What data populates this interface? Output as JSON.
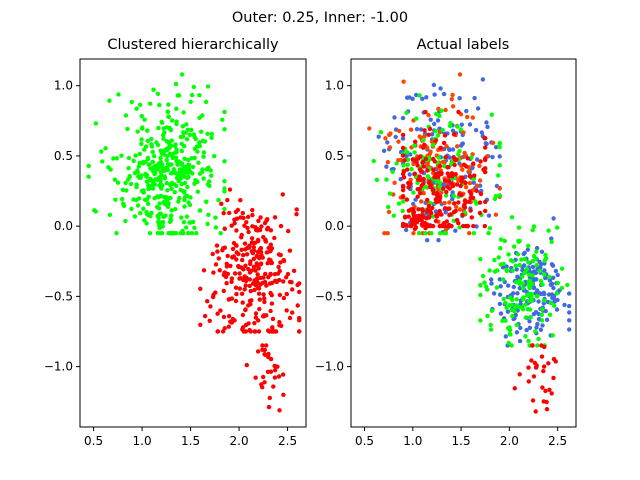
{
  "figure": {
    "suptitle": "Outer: 0.25, Inner: -1.00"
  },
  "colors": {
    "green": "#00ff00",
    "red": "#ff0000",
    "blue": "#4169e1",
    "orange": "#ff4500"
  },
  "chart_data": [
    {
      "type": "scatter",
      "title": "Clustered hierarchically",
      "xlim": [
        0.36,
        2.69
      ],
      "ylim": [
        -1.43,
        1.19
      ],
      "xticks": [
        0.5,
        1.0,
        1.5,
        2.0,
        2.5
      ],
      "xtick_labels": [
        "0.5",
        "1.0",
        "1.5",
        "2.0",
        "2.5"
      ],
      "yticks": [
        1.0,
        0.5,
        0.0,
        -0.5,
        -1.0
      ],
      "ytick_labels": [
        "1.0",
        "0.5",
        "0.0",
        "−0.5",
        "−1.0"
      ],
      "grid": false,
      "clusters": [
        {
          "color": "#00ff00",
          "count": 430,
          "cx": 1.25,
          "cy": 0.38,
          "sx": 0.28,
          "sy": 0.25,
          "xr": [
            0.45,
            1.85
          ],
          "yr": [
            -0.05,
            1.08
          ]
        },
        {
          "color": "#ff0000",
          "count": 300,
          "cx": 2.15,
          "cy": -0.35,
          "sx": 0.22,
          "sy": 0.25,
          "xr": [
            1.6,
            2.62
          ],
          "yr": [
            -0.75,
            0.35
          ]
        },
        {
          "color": "#ff0000",
          "count": 30,
          "cx": 2.3,
          "cy": -1.05,
          "sx": 0.1,
          "sy": 0.12,
          "xr": [
            2.05,
            2.58
          ],
          "yr": [
            -1.32,
            -0.85
          ]
        }
      ]
    },
    {
      "type": "scatter",
      "title": "Actual labels",
      "xlim": [
        0.36,
        2.69
      ],
      "ylim": [
        -1.43,
        1.19
      ],
      "xticks": [
        0.5,
        1.0,
        1.5,
        2.0,
        2.5
      ],
      "xtick_labels": [
        "0.5",
        "1.0",
        "1.5",
        "2.0",
        "2.5"
      ],
      "yticks": [
        1.0,
        0.5,
        0.0,
        -0.5,
        -1.0
      ],
      "ytick_labels": [
        "1.0",
        "0.5",
        "0.0",
        "−0.5",
        "−1.0"
      ],
      "grid": false,
      "clusters": [
        {
          "color": "#4169e1",
          "count": 160,
          "cx": 1.3,
          "cy": 0.45,
          "sx": 0.3,
          "sy": 0.25,
          "xr": [
            0.5,
            1.9
          ],
          "yr": [
            -0.1,
            1.05
          ]
        },
        {
          "color": "#ff4500",
          "count": 150,
          "cx": 1.25,
          "cy": 0.4,
          "sx": 0.28,
          "sy": 0.25,
          "xr": [
            0.55,
            1.9
          ],
          "yr": [
            -0.05,
            1.08
          ]
        },
        {
          "color": "#00ff00",
          "count": 120,
          "cx": 1.2,
          "cy": 0.35,
          "sx": 0.3,
          "sy": 0.25,
          "xr": [
            0.55,
            1.9
          ],
          "yr": [
            -0.05,
            1.0
          ]
        },
        {
          "color": "#ff0000",
          "count": 200,
          "cx": 1.3,
          "cy": 0.3,
          "sx": 0.25,
          "sy": 0.22,
          "xr": [
            0.9,
            1.75
          ],
          "yr": [
            0.0,
            1.0
          ]
        },
        {
          "color": "#ff0000",
          "count": 50,
          "cx": 1.05,
          "cy": 0.05,
          "sx": 0.08,
          "sy": 0.05,
          "xr": [
            0.92,
            1.25
          ],
          "yr": [
            -0.02,
            0.12
          ]
        },
        {
          "color": "#4169e1",
          "count": 170,
          "cx": 2.2,
          "cy": -0.45,
          "sx": 0.2,
          "sy": 0.18,
          "xr": [
            1.75,
            2.62
          ],
          "yr": [
            -0.85,
            0.15
          ]
        },
        {
          "color": "#00ff00",
          "count": 140,
          "cx": 2.15,
          "cy": -0.45,
          "sx": 0.22,
          "sy": 0.2,
          "xr": [
            1.7,
            2.6
          ],
          "yr": [
            -0.85,
            0.2
          ]
        },
        {
          "color": "#ff0000",
          "count": 30,
          "cx": 2.3,
          "cy": -1.05,
          "sx": 0.1,
          "sy": 0.12,
          "xr": [
            2.05,
            2.58
          ],
          "yr": [
            -1.32,
            -0.85
          ]
        }
      ]
    }
  ]
}
